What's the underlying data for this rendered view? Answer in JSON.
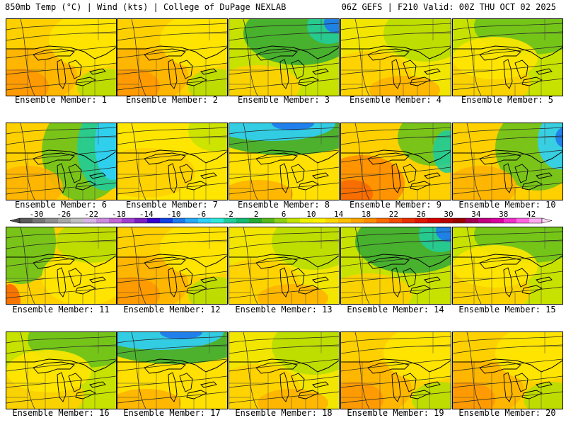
{
  "header": {
    "left": "850mb Temp (°C) | Wind (kts) | College of DuPage NEXLAB",
    "right": "06Z GEFS | F210 Valid: 00Z THU OCT 02 2025"
  },
  "members": [
    {
      "label": "Ensemble Member: 1",
      "scheme": "warm"
    },
    {
      "label": "Ensemble Member: 2",
      "scheme": "warm"
    },
    {
      "label": "Ensemble Member: 3",
      "scheme": "cool-ne"
    },
    {
      "label": "Ensemble Member: 4",
      "scheme": "mild"
    },
    {
      "label": "Ensemble Member: 5",
      "scheme": "mild-green"
    },
    {
      "label": "Ensemble Member: 6",
      "scheme": "cold-east"
    },
    {
      "label": "Ensemble Member: 7",
      "scheme": "yellow"
    },
    {
      "label": "Ensemble Member: 8",
      "scheme": "cold-north"
    },
    {
      "label": "Ensemble Member: 9",
      "scheme": "warm-sw"
    },
    {
      "label": "Ensemble Member: 10",
      "scheme": "cold-ne"
    },
    {
      "label": "Ensemble Member: 11",
      "scheme": "green-west"
    },
    {
      "label": "Ensemble Member: 12",
      "scheme": "warm"
    },
    {
      "label": "Ensemble Member: 13",
      "scheme": "mild"
    },
    {
      "label": "Ensemble Member: 14",
      "scheme": "cool-ne"
    },
    {
      "label": "Ensemble Member: 15",
      "scheme": "mild-green"
    },
    {
      "label": "Ensemble Member: 16",
      "scheme": "mild-green"
    },
    {
      "label": "Ensemble Member: 17",
      "scheme": "cold-north"
    },
    {
      "label": "Ensemble Member: 18",
      "scheme": "mild"
    },
    {
      "label": "Ensemble Member: 19",
      "scheme": "warm"
    },
    {
      "label": "Ensemble Member: 20",
      "scheme": "warm"
    }
  ],
  "colorbar": {
    "ticks": [
      "-30",
      "-26",
      "-22",
      "-18",
      "-14",
      "-10",
      "-6",
      "-2",
      "2",
      "6",
      "10",
      "14",
      "18",
      "22",
      "26",
      "30",
      "34",
      "38",
      "42"
    ],
    "colors": [
      "#5a5a5a",
      "#767676",
      "#8e8e8e",
      "#a6a6a6",
      "#bfbfbf",
      "#d6b3e6",
      "#c98cdc",
      "#c066d2",
      "#9f3fcf",
      "#7a1fbf",
      "#3300cc",
      "#1040e0",
      "#1f79ec",
      "#29a9f4",
      "#30d0f7",
      "#30e8d8",
      "#22cc99",
      "#16b870",
      "#27a832",
      "#55b81c",
      "#8ccf14",
      "#c4e200",
      "#eef000",
      "#fff000",
      "#ffd800",
      "#ffbf00",
      "#ffa500",
      "#ff8c00",
      "#f86a00",
      "#f04c00",
      "#e83000",
      "#dd1800",
      "#d40000",
      "#b80000",
      "#990000",
      "#a00050",
      "#c00080",
      "#d8009f",
      "#ee30c8",
      "#ff66e0",
      "#ffaaf0"
    ]
  }
}
